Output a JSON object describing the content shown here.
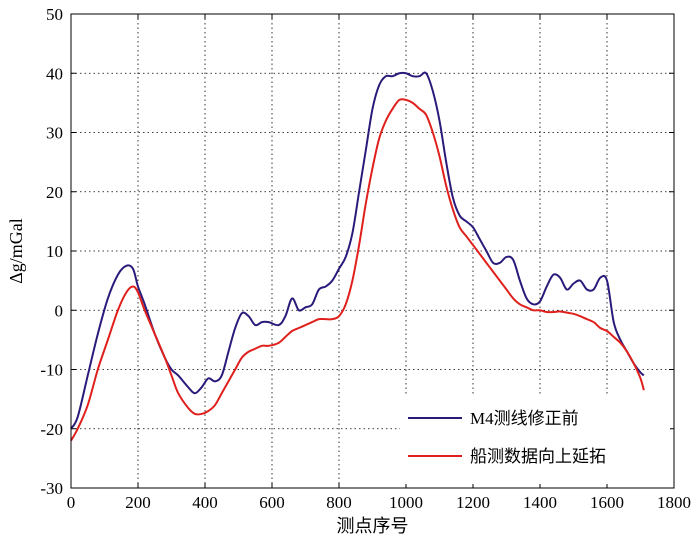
{
  "chart_data": {
    "type": "line",
    "xlabel": "测点序号",
    "ylabel": "Δg/mGal",
    "xlim": [
      0,
      1800
    ],
    "ylim": [
      -30,
      50
    ],
    "xticks": [
      0,
      200,
      400,
      600,
      800,
      1000,
      1200,
      1400,
      1600,
      1800
    ],
    "yticks": [
      -30,
      -20,
      -10,
      0,
      10,
      20,
      30,
      40,
      50
    ],
    "grid": true,
    "grid_style": "dotted",
    "legend_position": "bottom-right",
    "series": [
      {
        "name": "M4测线修正前",
        "color": "#2b1a7a",
        "x": [
          0,
          20,
          50,
          80,
          110,
          140,
          165,
          185,
          200,
          220,
          250,
          280,
          300,
          320,
          350,
          370,
          390,
          410,
          430,
          450,
          470,
          490,
          510,
          530,
          550,
          570,
          590,
          620,
          640,
          660,
          680,
          700,
          720,
          740,
          760,
          780,
          800,
          820,
          840,
          860,
          880,
          900,
          920,
          940,
          960,
          980,
          1000,
          1020,
          1040,
          1060,
          1080,
          1100,
          1120,
          1140,
          1160,
          1180,
          1200,
          1220,
          1240,
          1260,
          1280,
          1300,
          1320,
          1340,
          1360,
          1380,
          1400,
          1420,
          1440,
          1460,
          1480,
          1500,
          1520,
          1540,
          1560,
          1580,
          1600,
          1620,
          1640,
          1660,
          1680,
          1700,
          1710
        ],
        "y": [
          -20,
          -18,
          -11,
          -4,
          2,
          6,
          7.5,
          7,
          4,
          1,
          -4,
          -8,
          -10,
          -11,
          -13,
          -14,
          -13,
          -11.5,
          -12,
          -11,
          -7,
          -3,
          -0.5,
          -1,
          -2.5,
          -2,
          -2,
          -2.5,
          -1,
          2,
          0,
          0.5,
          1,
          3.5,
          4,
          5,
          7,
          9,
          13,
          20,
          27,
          34,
          38,
          39.5,
          39.5,
          40,
          40,
          39.5,
          39.5,
          40,
          37,
          32,
          25,
          19,
          16,
          15,
          14,
          12,
          10,
          8,
          8,
          9,
          8.5,
          5,
          2,
          1,
          1.5,
          4,
          6,
          5.5,
          3.5,
          4.5,
          5,
          3.5,
          3.5,
          5.5,
          5,
          -2,
          -5,
          -7,
          -9,
          -10.5,
          -11
        ]
      },
      {
        "name": "船测数据向上延拓",
        "color": "#e0201c",
        "x": [
          0,
          20,
          50,
          80,
          110,
          140,
          165,
          185,
          200,
          220,
          250,
          280,
          300,
          320,
          350,
          370,
          390,
          410,
          430,
          450,
          470,
          490,
          510,
          530,
          550,
          570,
          590,
          620,
          640,
          660,
          680,
          700,
          720,
          740,
          760,
          780,
          800,
          820,
          840,
          860,
          880,
          900,
          920,
          940,
          960,
          980,
          1000,
          1020,
          1040,
          1060,
          1080,
          1100,
          1120,
          1140,
          1160,
          1180,
          1200,
          1220,
          1240,
          1260,
          1280,
          1300,
          1320,
          1340,
          1360,
          1380,
          1400,
          1420,
          1440,
          1460,
          1480,
          1500,
          1520,
          1540,
          1560,
          1580,
          1600,
          1620,
          1640,
          1660,
          1680,
          1700,
          1710
        ],
        "y": [
          -22,
          -20,
          -16,
          -10,
          -5,
          0,
          3,
          4,
          3,
          0,
          -4,
          -8,
          -11,
          -14,
          -16.5,
          -17.5,
          -17.5,
          -17,
          -16,
          -14,
          -12,
          -10,
          -8,
          -7,
          -6.5,
          -6,
          -6,
          -5.5,
          -4.5,
          -3.5,
          -3,
          -2.5,
          -2,
          -1.5,
          -1.5,
          -1.5,
          -1,
          1,
          5,
          11,
          18,
          24,
          29,
          32,
          34,
          35.5,
          35.5,
          35,
          34,
          33,
          30,
          26,
          21,
          17,
          14,
          12.5,
          11,
          9.5,
          8,
          6.5,
          5,
          3.5,
          2,
          1,
          0.5,
          0,
          0,
          -0.3,
          -0.3,
          -0.2,
          -0.4,
          -0.6,
          -1,
          -1.5,
          -2,
          -3,
          -3.5,
          -4.5,
          -5.5,
          -7,
          -9,
          -11.5,
          -13.5
        ]
      }
    ]
  }
}
